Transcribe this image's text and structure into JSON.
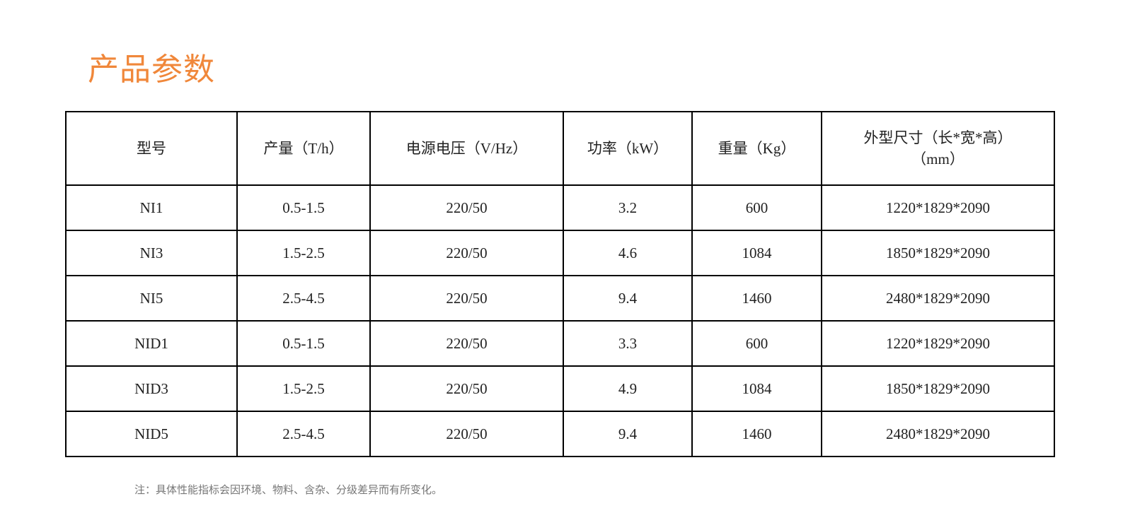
{
  "title": "产品参数",
  "table": {
    "headers": [
      "型号",
      "产量（T/h）",
      "电源电压（V/Hz）",
      "功率（kW）",
      "重量（Kg）",
      "外型尺寸（长*宽*高）（mm）"
    ],
    "header_last_line1": "外型尺寸（长*宽*高）",
    "header_last_line2": "（mm）",
    "rows": [
      [
        "NI1",
        "0.5-1.5",
        "220/50",
        "3.2",
        "600",
        "1220*1829*2090"
      ],
      [
        "NI3",
        "1.5-2.5",
        "220/50",
        "4.6",
        "1084",
        "1850*1829*2090"
      ],
      [
        "NI5",
        "2.5-4.5",
        "220/50",
        "9.4",
        "1460",
        "2480*1829*2090"
      ],
      [
        "NID1",
        "0.5-1.5",
        "220/50",
        "3.3",
        "600",
        "1220*1829*2090"
      ],
      [
        "NID3",
        "1.5-2.5",
        "220/50",
        "4.9",
        "1084",
        "1850*1829*2090"
      ],
      [
        "NID5",
        "2.5-4.5",
        "220/50",
        "9.4",
        "1460",
        "2480*1829*2090"
      ]
    ]
  },
  "note": "注：具体性能指标会因环境、物料、含杂、分级差异而有所变化。",
  "colors": {
    "title": "#f0873a"
  }
}
